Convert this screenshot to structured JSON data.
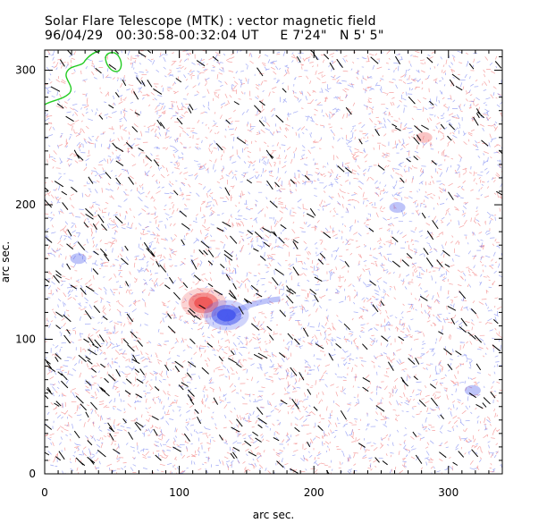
{
  "header": {
    "title": "Solar Flare Telescope (MTK) : vector magnetic field",
    "subtitle": "96/04/29   00:30:58-00:32:04 UT     E 7'24\"   N 5' 5\""
  },
  "chart_data": {
    "type": "heatmap",
    "title": "Solar Flare Telescope (MTK) : vector magnetic field",
    "subtitle": "96/04/29   00:30:58-00:32:04 UT     E 7'24\"   N 5' 5\"",
    "xlabel": "arc sec.",
    "ylabel": "arc sec.",
    "xlim": [
      0,
      340
    ],
    "ylim": [
      0,
      315
    ],
    "x_ticks": [
      0,
      100,
      200,
      300
    ],
    "y_ticks": [
      0,
      100,
      200,
      300
    ],
    "colors": {
      "positive_polarity": "#ee5555",
      "negative_polarity": "#4455ee",
      "transverse_vectors": "#000000",
      "contour": "#22cc22"
    },
    "features": [
      {
        "polarity": "positive",
        "x": 118,
        "y": 127,
        "strength": "strong"
      },
      {
        "polarity": "negative",
        "x": 135,
        "y": 118,
        "strength": "strong"
      },
      {
        "polarity": "positive",
        "x": 282,
        "y": 250,
        "strength": "weak"
      },
      {
        "polarity": "negative",
        "x": 318,
        "y": 62,
        "strength": "weak"
      },
      {
        "polarity": "negative",
        "x": 25,
        "y": 160,
        "strength": "weak"
      },
      {
        "polarity": "negative",
        "x": 262,
        "y": 198,
        "strength": "weak"
      }
    ]
  }
}
